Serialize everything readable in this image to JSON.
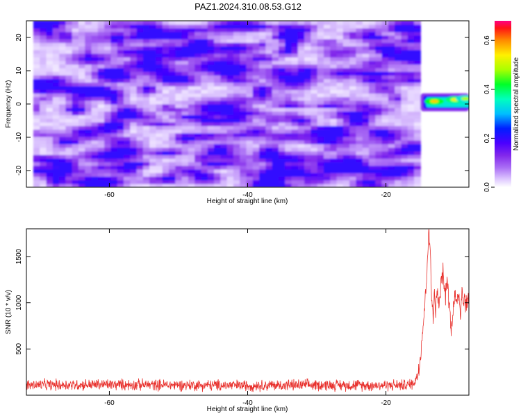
{
  "figure": {
    "title": "PAZ1.2024.310.08.53.G12"
  },
  "chart_data": [
    {
      "type": "heatmap",
      "xlabel": "Height of straight line (km)",
      "ylabel": "Frequency (Hz)",
      "xlim": [
        -72,
        -8
      ],
      "ylim": [
        -25,
        25
      ],
      "xticks": [
        -60,
        -40,
        -20
      ],
      "yticks": [
        -20,
        -10,
        0,
        10,
        20
      ],
      "grid": false,
      "noise_region_x": [
        -71,
        -15
      ],
      "signal_band": {
        "x": [
          -15,
          -8
        ],
        "y": [
          -1,
          2
        ]
      },
      "signal_peaks": [
        {
          "x": -13,
          "y": 0.8,
          "value": 0.48
        },
        {
          "x": -10,
          "y": 1.3,
          "value": 0.45
        },
        {
          "x": -8.5,
          "y": 1.6,
          "value": 0.4
        }
      ],
      "colorbar": {
        "label": "Normalized spectral amplitude",
        "range": [
          0,
          0.68
        ],
        "ticks": [
          0.0,
          0.2,
          0.4,
          0.6
        ],
        "colors": [
          "#ffffff",
          "#e0c8ff",
          "#8a2be2",
          "#4b00ff",
          "#0000ff",
          "#00c8ff",
          "#00ffb0",
          "#00ff00",
          "#b4ff00",
          "#ffff00",
          "#ffa000",
          "#ff0000",
          "#ff0080"
        ]
      }
    },
    {
      "type": "line",
      "xlabel": "Height of straight line (km)",
      "ylabel": "SNR (10 * v/v)",
      "xlim": [
        -72,
        -8
      ],
      "ylim": [
        0,
        1800
      ],
      "xticks": [
        -60,
        -40,
        -20
      ],
      "yticks": [
        500,
        1000,
        1500
      ],
      "grid": false,
      "series": [
        {
          "color": "#e8302c",
          "x": [
            -72,
            -60,
            -50,
            -40,
            -30,
            -20,
            -17,
            -16,
            -15.5,
            -15,
            -14.8,
            -14.5,
            -14.2,
            -14,
            -13.8,
            -13.6,
            -13.4,
            -13.2,
            -13,
            -12.8,
            -12.6,
            -12.4,
            -12.2,
            -12,
            -11.8,
            -11.6,
            -11.4,
            -11.2,
            -11,
            -10.8,
            -10.6,
            -10.4,
            -10.2,
            -10,
            -9.8,
            -9.6,
            -9.4,
            -9.2,
            -9,
            -8.8,
            -8.6,
            -8.4,
            -8.2,
            -8
          ],
          "y": [
            110,
            115,
            110,
            105,
            110,
            108,
            110,
            130,
            200,
            420,
            620,
            850,
            1180,
            1500,
            1750,
            1600,
            1100,
            820,
            1050,
            900,
            1150,
            980,
            1000,
            1250,
            1330,
            1200,
            1050,
            1300,
            1150,
            950,
            700,
            850,
            1000,
            1080,
            950,
            1120,
            1050,
            900,
            1150,
            1000,
            1080,
            960,
            1020,
            1000
          ]
        }
      ]
    }
  ]
}
